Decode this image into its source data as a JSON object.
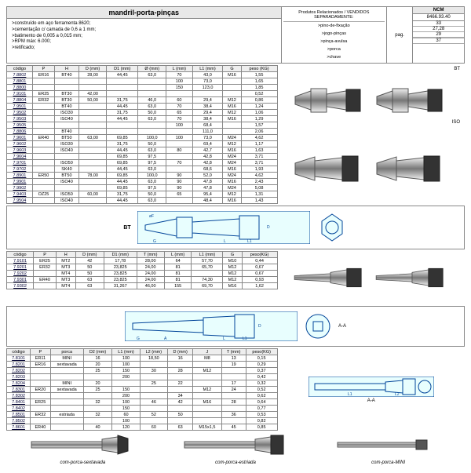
{
  "title": "mandril-porta-pinças",
  "ncm_label": "NCM",
  "ncm_value": "8466.93.40",
  "specs": [
    ">construído em aço ferramenta 8620;",
    ">cementação c/ camada de 0,6 a 1 mm;",
    ">batimento de 0,005 a 0,015 mm;",
    ">RPM máx: 6.000;",
    ">retificado;"
  ],
  "related_hdr": "Produtos Relacionados / VENDIDOS SEPARADAMENTE:",
  "related": [
    ">pino-de-fixação",
    ">jogo-pinças",
    ">pinça-avulsa",
    ">porca",
    ">chave"
  ],
  "pag": "pag.",
  "pages": [
    "33",
    "27,28",
    "29",
    "",
    "37"
  ],
  "cols1": [
    "código",
    "P",
    "H",
    "D (mm)",
    "D1 (mm)",
    "Ø (mm)",
    "L (mm)",
    "L1 (mm)",
    "G",
    "peso (KG)"
  ],
  "label_bt": "BT",
  "label_iso": "ISO",
  "rows1": [
    [
      "7.8802",
      "ER16",
      "BT40",
      "28,00",
      "44,45",
      "63,0",
      "70",
      "43,0",
      "M16",
      "1,55"
    ],
    [
      "7.8801",
      "",
      "",
      "",
      "",
      "",
      "100",
      "73,0",
      "",
      "1,65"
    ],
    [
      "7.8800",
      "",
      "",
      "",
      "",
      "",
      "150",
      "123,0",
      "",
      "1,85"
    ],
    [
      "7.9101",
      "ER25",
      "BT30",
      "42,00",
      "",
      "",
      "",
      "",
      "",
      "0,52"
    ],
    [
      "7.8804",
      "ER32",
      "BT30",
      "50,00",
      "31,75",
      "46,0",
      "60",
      "29,4",
      "M12",
      "0,86"
    ],
    [
      "7.9501",
      "",
      "BT40",
      "",
      "44,45",
      "63,0",
      "70",
      "38,4",
      "M16",
      "1,24"
    ],
    [
      "7.9502",
      "",
      "ISO30",
      "",
      "31,75",
      "50,0",
      "65",
      "29,4",
      "M12",
      "1,06"
    ],
    [
      "7.9503",
      "",
      "ISO40",
      "",
      "44,45",
      "63,0",
      "70",
      "38,4",
      "M16",
      "1,29"
    ],
    [
      "7.9505",
      "",
      "",
      "",
      "",
      "",
      "100",
      "68,4",
      "",
      "1,57"
    ],
    [
      "7.8806",
      "",
      "BT40",
      "",
      "",
      "",
      "",
      "111,0",
      "",
      "2,06"
    ],
    [
      "7.9601",
      "ER40",
      "BT50",
      "63,00",
      "69,85",
      "100,0",
      "100",
      "73,0",
      "M24",
      "4,62"
    ],
    [
      "7.9602",
      "",
      "ISO30",
      "",
      "31,75",
      "50,0",
      "",
      "69,4",
      "M12",
      "1,17"
    ],
    [
      "7.9603",
      "",
      "ISO40",
      "",
      "44,45",
      "63,0",
      "80",
      "42,7",
      "M16",
      "1,63"
    ],
    [
      "7.9604",
      "",
      "",
      "",
      "69,85",
      "97,5",
      "",
      "42,8",
      "M24",
      "3,71"
    ],
    [
      "7.9701",
      "",
      "ISO50",
      "",
      "69,85",
      "97,5",
      "70",
      "42,8",
      "M24",
      "3,71"
    ],
    [
      "7.9702",
      "",
      "SK40",
      "",
      "44,45",
      "63,0",
      "",
      "68,6",
      "M16",
      "1,93"
    ],
    [
      "7.8901",
      "ER50",
      "BT50",
      "78,00",
      "69,85",
      "100,0",
      "90",
      "52,0",
      "M24",
      "4,62"
    ],
    [
      "7.9901",
      "",
      "ISO40",
      "",
      "44,45",
      "63,0",
      "90",
      "47,8",
      "M16",
      "2,43"
    ],
    [
      "7.9902",
      "",
      "",
      "",
      "69,85",
      "97,5",
      "90",
      "47,8",
      "M24",
      "5,08"
    ],
    [
      "7.9403",
      "OZ25",
      "ISO50",
      "60,00",
      "31,75",
      "50,0",
      "65",
      "95,4",
      "M12",
      "1,31"
    ],
    [
      "7.9504",
      "",
      "ISO40",
      "",
      "44,45",
      "63,0",
      "",
      "48,4",
      "M16",
      "1,43"
    ]
  ],
  "cols2": [
    "código",
    "P",
    "H",
    "D (mm)",
    "D1 (mm)",
    "T (mm)",
    "L (mm)",
    "L1 (mm)",
    "G",
    "peso(KG)"
  ],
  "rows2": [
    [
      "7.9101",
      "ER25",
      "MT2",
      "42",
      "17,78",
      "28,00",
      "64",
      "57,70",
      "M10",
      "0,44"
    ],
    [
      "7.9201",
      "ER32",
      "MT3",
      "50",
      "23,825",
      "24,00",
      "81",
      "65,70",
      "M12",
      "0,67"
    ],
    [
      "7.9202",
      "",
      "MT4",
      "50",
      "23,825",
      "24,00",
      "81",
      "",
      "M12",
      "0,67"
    ],
    [
      "7.9301",
      "ER40",
      "MT3",
      "63",
      "23,825",
      "24,00",
      "81",
      "74,30",
      "M12",
      "0,93"
    ],
    [
      "7.9302",
      "",
      "MT4",
      "63",
      "31,267",
      "46,00",
      "155",
      "69,70",
      "M16",
      "1,62"
    ]
  ],
  "cols3": [
    "código",
    "P",
    "porca",
    "D2 (mm)",
    "L1 (mm)",
    "L2 (mm)",
    "D (mm)",
    "J",
    "T (mm)",
    "peso(KG)"
  ],
  "rows3": [
    [
      "7.8101",
      "ER11",
      "MINI",
      "16",
      "100",
      "18,50",
      "16",
      "M8",
      "13",
      "0,15"
    ],
    [
      "7.8201",
      "ER16",
      "sextavada",
      "20",
      "100",
      "",
      "",
      "",
      "19",
      "0,29"
    ],
    [
      "7.8202",
      "",
      "",
      "25",
      "150",
      "30",
      "28",
      "M12",
      "",
      "0,37"
    ],
    [
      "7.8203",
      "",
      "",
      "",
      "200",
      "",
      "",
      "",
      "",
      "0,42"
    ],
    [
      "7.8204",
      "",
      "MINI",
      "20",
      "",
      "25",
      "22",
      "",
      "17",
      "0,32"
    ],
    [
      "7.8301",
      "ER20",
      "sextavada",
      "25",
      "150",
      "",
      "",
      "M12",
      "24",
      "0,52"
    ],
    [
      "7.8302",
      "",
      "",
      "",
      "200",
      "",
      "34",
      "",
      "",
      "0,62"
    ],
    [
      "7.8401",
      "ER25",
      "",
      "32",
      "100",
      "46",
      "42",
      "M16",
      "28",
      "0,64"
    ],
    [
      "7.8402",
      "",
      "",
      "",
      "150",
      "",
      "",
      "",
      "",
      "0,77"
    ],
    [
      "7.8501",
      "ER32",
      "estriada",
      "32",
      "60",
      "52",
      "50",
      "",
      "36",
      "0,53"
    ],
    [
      "7.8502",
      "",
      "",
      "",
      "100",
      "",
      "",
      "",
      "",
      "0,82"
    ],
    [
      "7.8601",
      "ER40",
      "",
      "40",
      "120",
      "60",
      "63",
      "M15x1,5",
      "45",
      "0,85"
    ]
  ],
  "foot_labels": [
    "com-porca-sextavada",
    "com-porca-estriada",
    "com-porca-MINI"
  ],
  "diag_bt": "BT",
  "aa_label": "A-A"
}
